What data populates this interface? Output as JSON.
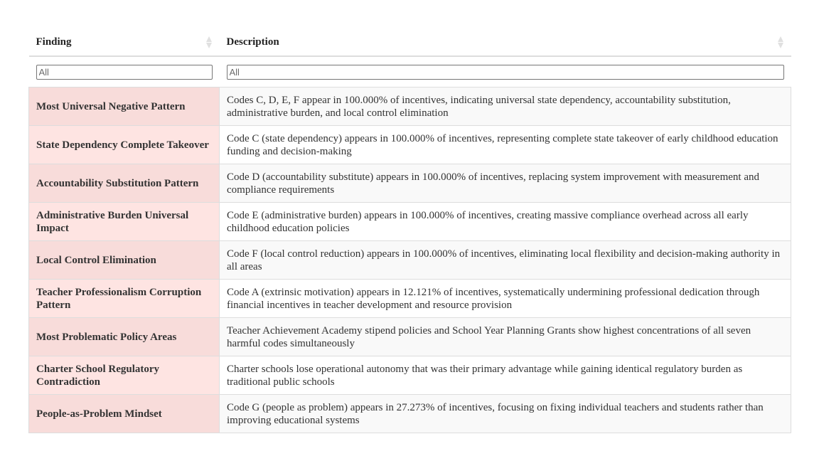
{
  "table": {
    "headers": [
      {
        "label": "Finding"
      },
      {
        "label": "Description"
      }
    ],
    "filters": [
      {
        "placeholder": "All",
        "value": ""
      },
      {
        "placeholder": "All",
        "value": ""
      }
    ],
    "rows": [
      {
        "finding": "Most Universal Negative Pattern",
        "description": "Codes C, D, E, F appear in 100.000% of incentives, indicating universal state dependency, accountability substitution, administrative burden, and local control elimination"
      },
      {
        "finding": "State Dependency Complete Takeover",
        "description": "Code C (state dependency) appears in 100.000% of incentives, representing complete state takeover of early childhood education funding and decision-making"
      },
      {
        "finding": "Accountability Substitution Pattern",
        "description": "Code D (accountability substitute) appears in 100.000% of incentives, replacing system improvement with measurement and compliance requirements"
      },
      {
        "finding": "Administrative Burden Universal Impact",
        "description": "Code E (administrative burden) appears in 100.000% of incentives, creating massive compliance overhead across all early childhood education policies"
      },
      {
        "finding": "Local Control Elimination",
        "description": "Code F (local control reduction) appears in 100.000% of incentives, eliminating local flexibility and decision-making authority in all areas"
      },
      {
        "finding": "Teacher Professionalism Corruption Pattern",
        "description": "Code A (extrinsic motivation) appears in 12.121% of incentives, systematically undermining professional dedication through financial incentives in teacher development and resource provision"
      },
      {
        "finding": "Most Problematic Policy Areas",
        "description": "Teacher Achievement Academy stipend policies and School Year Planning Grants show highest concentrations of all seven harmful codes simultaneously"
      },
      {
        "finding": "Charter School Regulatory Contradiction",
        "description": "Charter schools lose operational autonomy that was their primary advantage while gaining identical regulatory burden as traditional public schools"
      },
      {
        "finding": "People-as-Problem Mindset",
        "description": "Code G (people as problem) appears in 27.273% of incentives, focusing on fixing individual teachers and students rather than improving educational systems"
      }
    ]
  }
}
